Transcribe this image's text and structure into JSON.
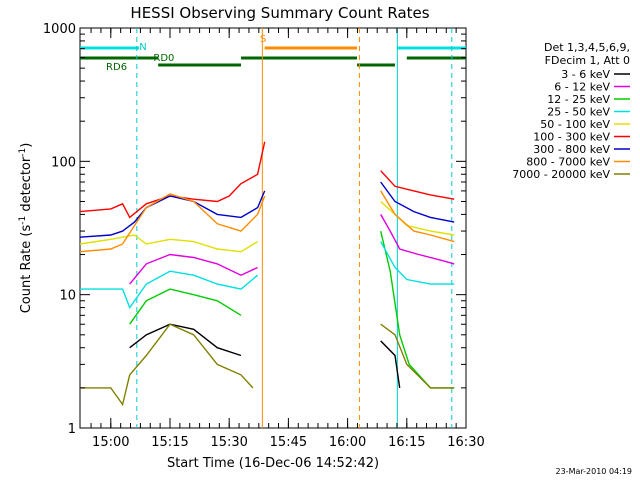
{
  "chart_data": {
    "type": "line",
    "title": "HESSI Observing Summary Count Rates",
    "xlabel": "Start Time (16-Dec-06 14:52:42)",
    "ylabel": "Count Rate (s",
    "ylabel_sup1": "-1",
    "ylabel_mid": " detector",
    "ylabel_sup2": "-1",
    "ylabel_end": ")",
    "y_scale": "log",
    "ylim": [
      1,
      1000
    ],
    "xlim_minutes": [
      14.87,
      16.5
    ],
    "x_ticks": [
      {
        "label": "15:00",
        "t": 15.0
      },
      {
        "label": "15:15",
        "t": 15.25
      },
      {
        "label": "15:30",
        "t": 15.5
      },
      {
        "label": "15:45",
        "t": 15.75
      },
      {
        "label": "16:00",
        "t": 16.0
      },
      {
        "label": "16:15",
        "t": 16.25
      },
      {
        "label": "16:30",
        "t": 16.5
      }
    ],
    "y_ticks": [
      {
        "label": "1",
        "v": 1
      },
      {
        "label": "10",
        "v": 10
      },
      {
        "label": "100",
        "v": 100
      },
      {
        "label": "1000",
        "v": 1000
      }
    ],
    "legend_header": [
      "Det 1,3,4,5,6,9,",
      "FDecim 1, Att 0"
    ],
    "legend_placement": "right",
    "series": [
      {
        "name": "3 - 6 keV",
        "color": "#000000",
        "points": [
          [
            15.08,
            4
          ],
          [
            15.15,
            5
          ],
          [
            15.25,
            6
          ],
          [
            15.35,
            5.5
          ],
          [
            15.45,
            4
          ],
          [
            15.55,
            3.5
          ],
          [
            16.14,
            4.5
          ],
          [
            16.2,
            3.5
          ],
          [
            16.22,
            2
          ]
        ]
      },
      {
        "name": "6 - 12 keV",
        "color": "#e000e0",
        "points": [
          [
            15.08,
            12
          ],
          [
            15.15,
            17
          ],
          [
            15.25,
            20
          ],
          [
            15.35,
            19
          ],
          [
            15.45,
            17
          ],
          [
            15.55,
            14
          ],
          [
            15.62,
            16
          ],
          [
            16.14,
            40
          ],
          [
            16.18,
            30
          ],
          [
            16.22,
            22
          ],
          [
            16.3,
            20
          ],
          [
            16.4,
            18
          ],
          [
            16.45,
            17
          ]
        ]
      },
      {
        "name": "12 - 25 keV",
        "color": "#00cc00",
        "points": [
          [
            15.08,
            6
          ],
          [
            15.15,
            9
          ],
          [
            15.25,
            11
          ],
          [
            15.35,
            10
          ],
          [
            15.45,
            9
          ],
          [
            15.55,
            7
          ],
          [
            16.14,
            30
          ],
          [
            16.18,
            15
          ],
          [
            16.22,
            5
          ],
          [
            16.26,
            3
          ],
          [
            16.35,
            2
          ],
          [
            16.45,
            2
          ]
        ]
      },
      {
        "name": "25 - 50 keV",
        "color": "#00e0e0",
        "points": [
          [
            14.87,
            11
          ],
          [
            15.0,
            11
          ],
          [
            15.05,
            11
          ],
          [
            15.08,
            8
          ],
          [
            15.15,
            12
          ],
          [
            15.25,
            15
          ],
          [
            15.35,
            14
          ],
          [
            15.45,
            12
          ],
          [
            15.55,
            11
          ],
          [
            15.62,
            14
          ],
          [
            16.14,
            25
          ],
          [
            16.2,
            16
          ],
          [
            16.25,
            13
          ],
          [
            16.35,
            12
          ],
          [
            16.45,
            12
          ]
        ]
      },
      {
        "name": "50 - 100 keV",
        "color": "#e0e000",
        "points": [
          [
            14.87,
            24
          ],
          [
            15.0,
            26
          ],
          [
            15.05,
            27
          ],
          [
            15.1,
            28
          ],
          [
            15.15,
            24
          ],
          [
            15.25,
            26
          ],
          [
            15.35,
            25
          ],
          [
            15.45,
            22
          ],
          [
            15.55,
            21
          ],
          [
            15.62,
            25
          ],
          [
            16.14,
            50
          ],
          [
            16.2,
            40
          ],
          [
            16.25,
            33
          ],
          [
            16.35,
            30
          ],
          [
            16.45,
            28
          ]
        ]
      },
      {
        "name": "100 - 300 keV",
        "color": "#ff0000",
        "points": [
          [
            14.87,
            42
          ],
          [
            15.0,
            44
          ],
          [
            15.05,
            48
          ],
          [
            15.08,
            38
          ],
          [
            15.15,
            48
          ],
          [
            15.25,
            55
          ],
          [
            15.35,
            52
          ],
          [
            15.45,
            50
          ],
          [
            15.5,
            55
          ],
          [
            15.55,
            68
          ],
          [
            15.62,
            80
          ],
          [
            15.65,
            140
          ],
          [
            16.14,
            85
          ],
          [
            16.2,
            65
          ],
          [
            16.28,
            60
          ],
          [
            16.35,
            56
          ],
          [
            16.45,
            52
          ]
        ]
      },
      {
        "name": "300 - 800 keV",
        "color": "#0000cc",
        "points": [
          [
            14.87,
            27
          ],
          [
            15.0,
            28
          ],
          [
            15.05,
            30
          ],
          [
            15.1,
            35
          ],
          [
            15.15,
            45
          ],
          [
            15.25,
            55
          ],
          [
            15.35,
            50
          ],
          [
            15.45,
            40
          ],
          [
            15.55,
            38
          ],
          [
            15.62,
            45
          ],
          [
            15.65,
            60
          ],
          [
            16.14,
            70
          ],
          [
            16.2,
            50
          ],
          [
            16.28,
            42
          ],
          [
            16.35,
            38
          ],
          [
            16.45,
            35
          ]
        ]
      },
      {
        "name": "800 - 7000 keV",
        "color": "#ff8c00",
        "points": [
          [
            14.87,
            21
          ],
          [
            15.0,
            22
          ],
          [
            15.05,
            24
          ],
          [
            15.1,
            33
          ],
          [
            15.15,
            45
          ],
          [
            15.25,
            57
          ],
          [
            15.35,
            50
          ],
          [
            15.45,
            34
          ],
          [
            15.55,
            30
          ],
          [
            15.62,
            40
          ],
          [
            15.65,
            55
          ],
          [
            16.14,
            60
          ],
          [
            16.2,
            40
          ],
          [
            16.28,
            30
          ],
          [
            16.35,
            28
          ],
          [
            16.45,
            25
          ]
        ]
      },
      {
        "name": "7000 - 20000 keV",
        "color": "#808000",
        "points": [
          [
            14.87,
            2
          ],
          [
            15.0,
            2
          ],
          [
            15.05,
            1.5
          ],
          [
            15.08,
            2.5
          ],
          [
            15.15,
            3.5
          ],
          [
            15.25,
            6
          ],
          [
            15.35,
            5
          ],
          [
            15.45,
            3
          ],
          [
            15.55,
            2.5
          ],
          [
            15.6,
            2
          ],
          [
            16.14,
            6
          ],
          [
            16.2,
            5
          ],
          [
            16.25,
            3
          ],
          [
            16.35,
            2
          ],
          [
            16.45,
            2
          ]
        ]
      }
    ],
    "annotations": [
      {
        "label": "N",
        "color": "#00cccc",
        "t": 15.12
      },
      {
        "label": "RD0",
        "color": "#006600",
        "t": 15.18
      },
      {
        "label": "RD6",
        "color": "#006600",
        "t": 14.98
      },
      {
        "label": "S",
        "color": "#ff8c00",
        "t": 15.63
      }
    ],
    "vertical_markers": [
      {
        "t": 15.11,
        "color": "#00cccc",
        "style": "dashed"
      },
      {
        "t": 15.64,
        "color": "#ff8c00",
        "style": "solid"
      },
      {
        "t": 16.05,
        "color": "#ff8c00",
        "style": "dashed"
      },
      {
        "t": 16.21,
        "color": "#00cccc",
        "style": "solid"
      },
      {
        "t": 16.44,
        "color": "#00cccc",
        "style": "dashed"
      }
    ],
    "status_bars": [
      {
        "color": "#00e0e0",
        "level": 0,
        "segments": [
          [
            14.87,
            15.12
          ],
          [
            16.21,
            16.5
          ]
        ]
      },
      {
        "color": "#ff8c00",
        "level": 0,
        "segments": [
          [
            15.65,
            16.04
          ]
        ]
      },
      {
        "color": "#006600",
        "level": 1,
        "segments": [
          [
            14.87,
            15.2
          ],
          [
            15.55,
            16.04
          ],
          [
            16.25,
            16.5
          ]
        ]
      },
      {
        "color": "#006600",
        "level": 2,
        "segments": [
          [
            15.2,
            15.55
          ],
          [
            16.04,
            16.2
          ]
        ]
      }
    ],
    "grid": false
  },
  "footer": {
    "timestamp": "23-Mar-2010 04:19"
  }
}
